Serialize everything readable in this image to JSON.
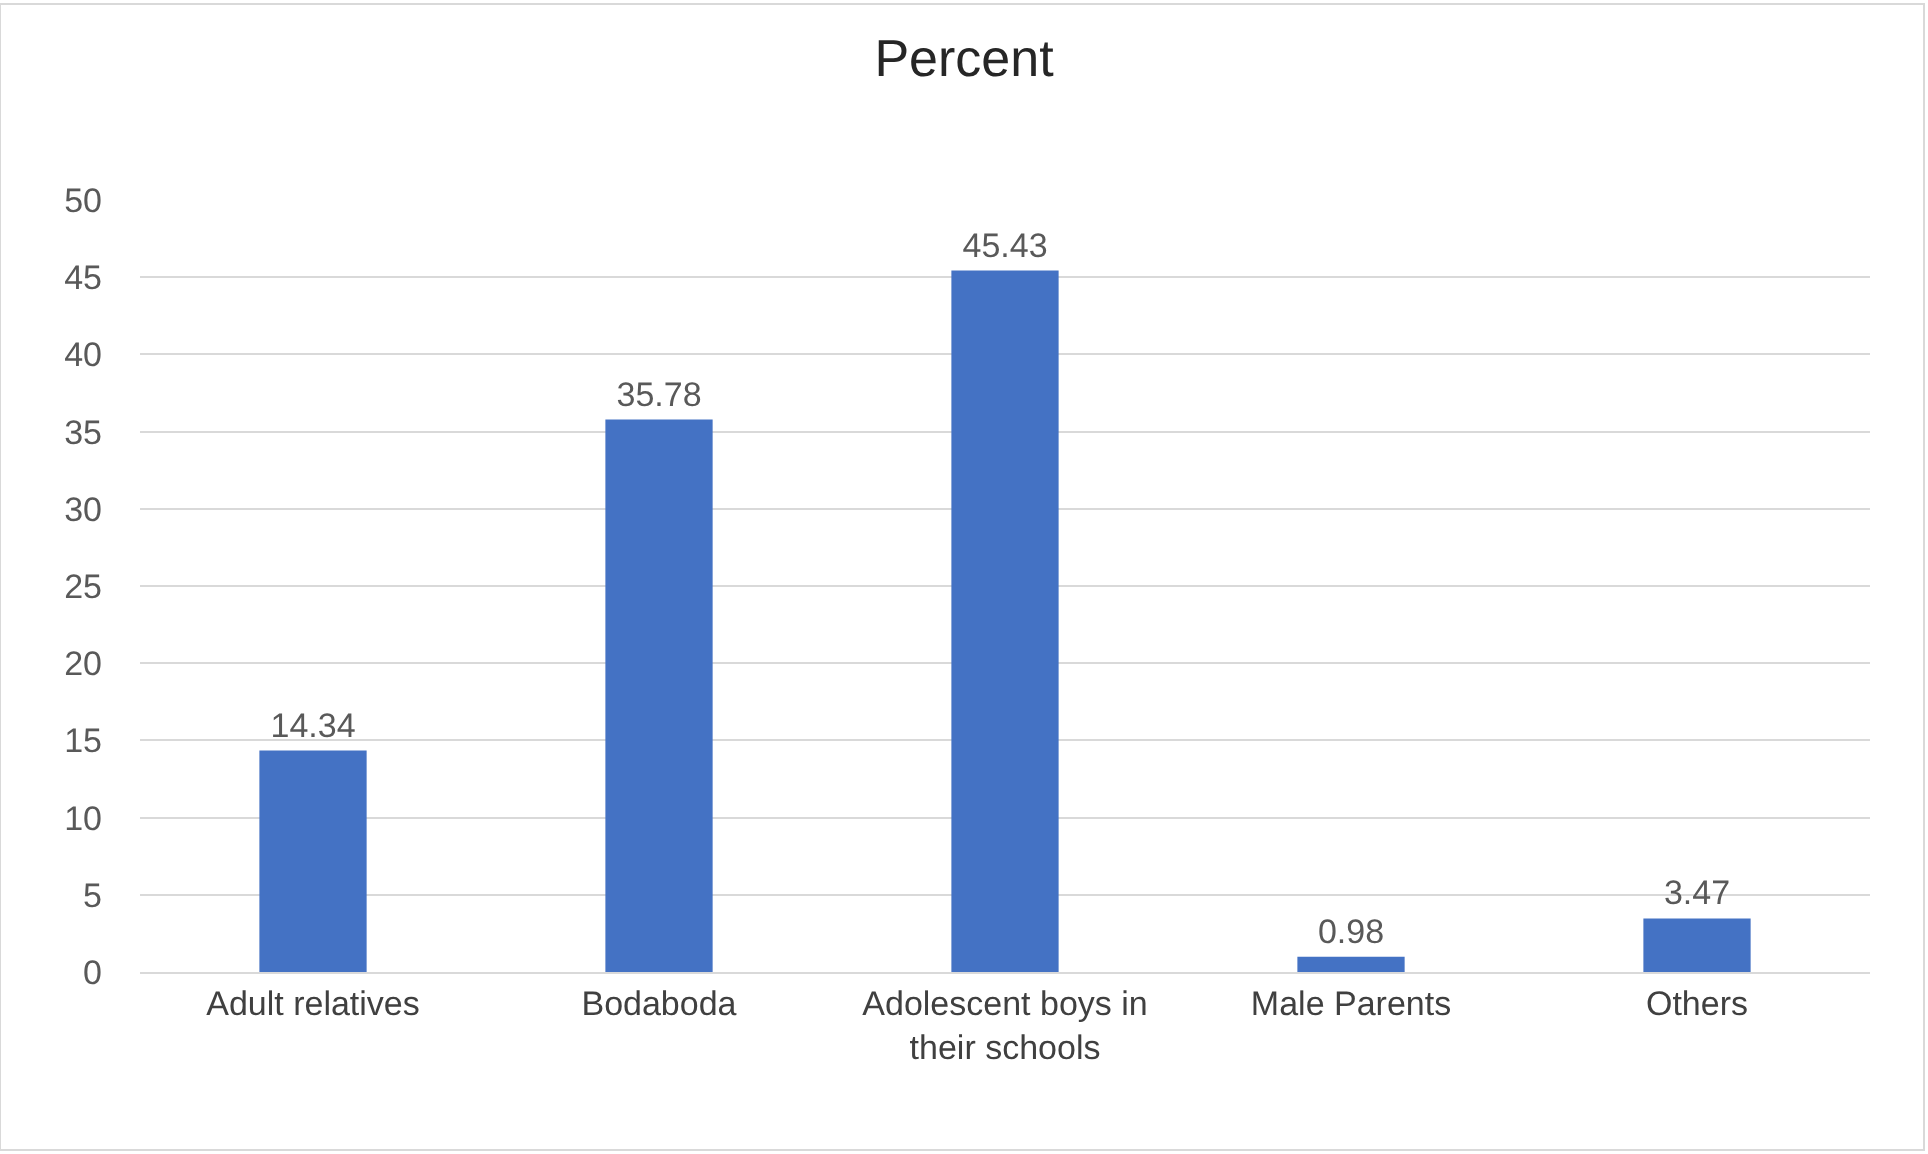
{
  "chart_data": {
    "type": "bar",
    "title": "Percent",
    "categories": [
      "Adult relatives",
      "Bodaboda",
      "Adolescent boys in their schools",
      "Male Parents",
      "Others"
    ],
    "values": [
      14.34,
      35.78,
      45.43,
      0.98,
      3.47
    ],
    "color": "#4472c4",
    "ylim": [
      0,
      50
    ],
    "yticks": [
      0,
      5,
      10,
      15,
      20,
      25,
      30,
      35,
      40,
      45,
      50
    ],
    "grid": "y",
    "data_labels": true
  }
}
